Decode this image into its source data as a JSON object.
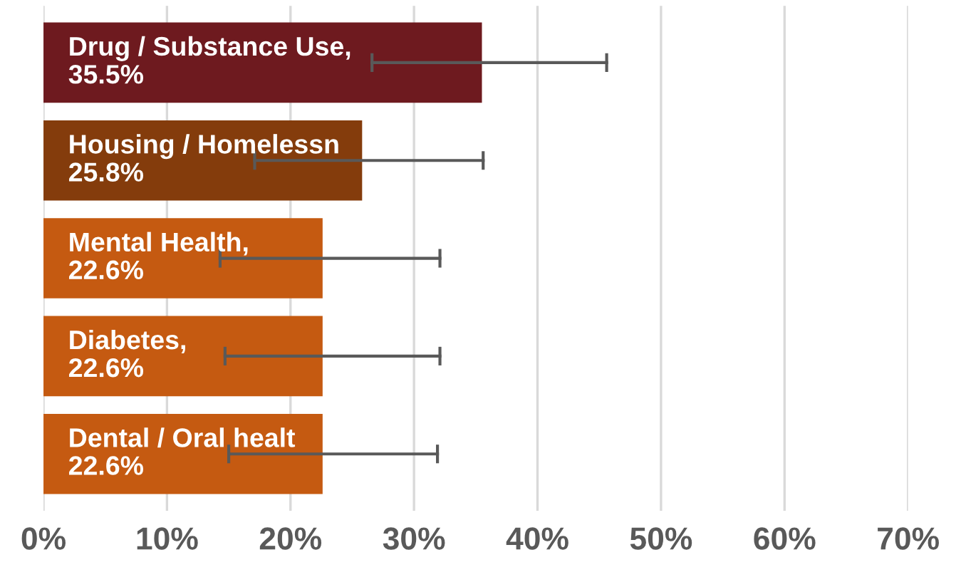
{
  "chart_data": {
    "type": "bar",
    "orientation": "horizontal",
    "categories": [
      null,
      null,
      null,
      null,
      null
    ],
    "values": [
      35.5,
      25.8,
      22.6,
      22.6,
      22.6
    ],
    "colors": [
      "#6e1a1f",
      "#843c0c",
      "#c55a11",
      "#c55a11",
      "#c55a11"
    ],
    "value_labels": [
      "Drug / Substance Use,\n35.5%",
      "Housing / Homelessn\n25.8%",
      "Mental Health,\n22.6%",
      "Diabetes,\n22.6%",
      "Dental / Oral healt\n22.6%"
    ],
    "errors": [
      [
        26.6,
        45.6
      ],
      [
        17.1,
        35.6
      ],
      [
        14.3,
        32.1
      ],
      [
        14.7,
        32.1
      ],
      [
        15.0,
        31.9
      ]
    ],
    "xlim": [
      0,
      70
    ],
    "xticks": [
      {
        "value": 0,
        "label": "0%"
      },
      {
        "value": 10,
        "label": "10%"
      },
      {
        "value": 20,
        "label": "20%"
      },
      {
        "value": 30,
        "label": "30%"
      },
      {
        "value": 40,
        "label": "40%"
      },
      {
        "value": 50,
        "label": "50%"
      },
      {
        "value": 60,
        "label": "60%"
      },
      {
        "value": 70,
        "label": "70%"
      }
    ],
    "grid": "x",
    "tick_labels": "x"
  }
}
